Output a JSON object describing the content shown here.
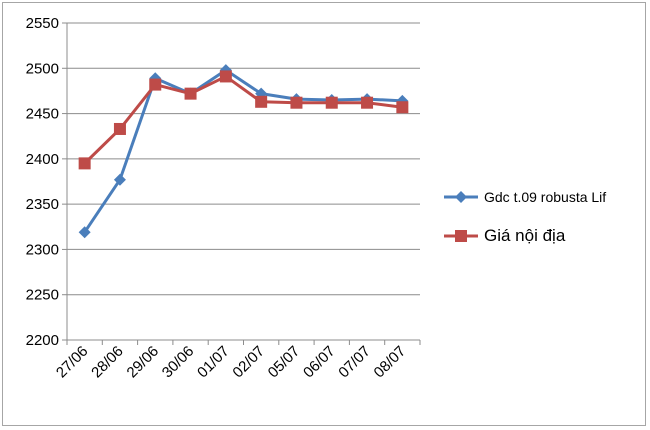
{
  "chart_data": {
    "type": "line",
    "title": "",
    "xlabel": "",
    "ylabel": "",
    "categories": [
      "27/06",
      "28/06",
      "29/06",
      "30/06",
      "01/07",
      "02/07",
      "05/07",
      "06/07",
      "07/07",
      "08/07"
    ],
    "ylim": [
      2200,
      2550
    ],
    "yticks": [
      2200,
      2250,
      2300,
      2350,
      2400,
      2450,
      2500,
      2550
    ],
    "grid": true,
    "legend_position": "right",
    "series": [
      {
        "name": "Gdc t.09 robusta Lif",
        "color": "#4a7ebb",
        "marker": "diamond",
        "values": [
          2319,
          2377,
          2489,
          2472,
          2498,
          2472,
          2466,
          2465,
          2466,
          2464
        ]
      },
      {
        "name": "Giá nội địa",
        "color": "#be4b48",
        "marker": "square",
        "values": [
          2395,
          2433,
          2482,
          2472,
          2491,
          2463,
          2462,
          2462,
          2462,
          2457
        ]
      }
    ]
  }
}
